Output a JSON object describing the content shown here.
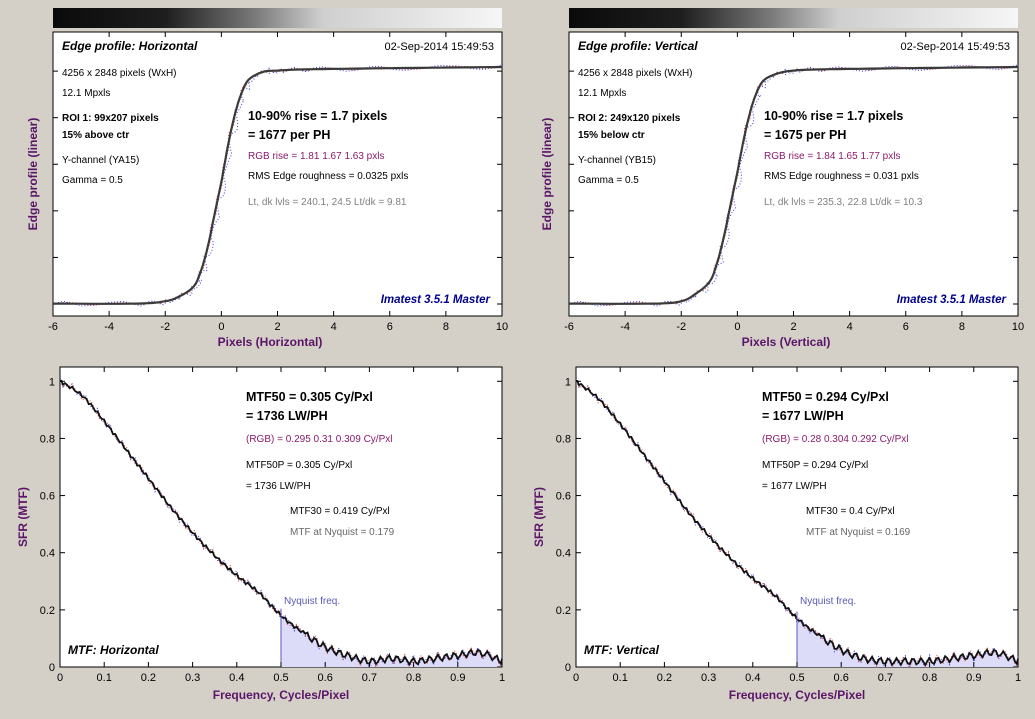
{
  "colors": {
    "background": "#d4d0c8",
    "plot_bg": "#ffffff",
    "main_line": "#3a3a3a",
    "red_channel": "#d23c3c",
    "green_channel": "#2f8f2f",
    "blue_channel": "#3b3bd6",
    "axis_label": "#5a1468",
    "rgb_text": "#8a1a6a",
    "gray_text": "#808080",
    "watermark": "#00008b",
    "nyquist_line": "#5a5ab4",
    "nyquist_fill": "#dcdcf8"
  },
  "edge_panels": [
    {
      "title": "Edge profile: Horizontal",
      "timestamp": "02-Sep-2014 15:49:53",
      "info": [
        "4256 x 2848 pixels (WxH)",
        "12.1 Mpxls"
      ],
      "roi": "ROI 1:  99x207 pixels",
      "roi_pos": "15% above ctr",
      "channel": "Y-channel  (YA15)",
      "gamma": "Gamma = 0.5",
      "rise": "10-90% rise = 1.7 pixels",
      "per_ph": "= 1677 per PH",
      "rgb_rise": "RGB rise = 1.81  1.67  1.63 pxls",
      "roughness": "RMS Edge roughness = 0.0325 pxls",
      "levels": "Lt, dk lvls = 240.1, 24.5   Lt/dk = 9.81",
      "watermark": "Imatest 3.5.1 Master",
      "xlabel": "Pixels (Horizontal)",
      "ylabel": "Edge profile (linear)"
    },
    {
      "title": "Edge profile: Vertical",
      "timestamp": "02-Sep-2014 15:49:53",
      "info": [
        "4256 x 2848 pixels (WxH)",
        "12.1 Mpxls"
      ],
      "roi": "ROI 2:  249x120 pixels",
      "roi_pos": "15% below ctr",
      "channel": "Y-channel  (YB15)",
      "gamma": "Gamma = 0.5",
      "rise": "10-90% rise = 1.7 pixels",
      "per_ph": "= 1675 per PH",
      "rgb_rise": "RGB rise = 1.84  1.65  1.77 pxls",
      "roughness": "RMS Edge roughness = 0.031 pxls",
      "levels": "Lt, dk lvls = 235.3, 22.8   Lt/dk = 10.3",
      "watermark": "Imatest 3.5.1 Master",
      "xlabel": "Pixels (Vertical)",
      "ylabel": "Edge profile (linear)"
    }
  ],
  "mtf_panels": [
    {
      "title": "MTF: Horizontal",
      "mtf50": "MTF50 = 0.305 Cy/Pxl",
      "mtf50_lw": "= 1736 LW/PH",
      "rgb": "(RGB) = 0.295  0.31  0.309 Cy/Pxl",
      "mtf50p": "MTF50P = 0.305 Cy/Pxl",
      "mtf50p_lw": "= 1736 LW/PH",
      "mtf30": "MTF30 = 0.419 Cy/Pxl",
      "nyq": "MTF at Nyquist = 0.179",
      "nyquist_label": "Nyquist freq.",
      "xlabel": "Frequency, Cycles/Pixel",
      "ylabel": "SFR (MTF)"
    },
    {
      "title": "MTF: Vertical",
      "mtf50": "MTF50 = 0.294 Cy/Pxl",
      "mtf50_lw": "= 1677 LW/PH",
      "rgb": "(RGB) = 0.28  0.304  0.292 Cy/Pxl",
      "mtf50p": "MTF50P = 0.294 Cy/Pxl",
      "mtf50p_lw": "= 1677 LW/PH",
      "mtf30": "MTF30 = 0.4 Cy/Pxl",
      "nyq": "MTF at Nyquist = 0.169",
      "nyquist_label": "Nyquist freq.",
      "xlabel": "Frequency, Cycles/Pixel",
      "ylabel": "SFR (MTF)"
    }
  ],
  "chart_data": [
    {
      "type": "line",
      "title": "Edge profile: Horizontal",
      "xlabel": "Pixels (Horizontal)",
      "ylabel": "Edge profile (linear)",
      "xlim": [
        -6,
        10
      ],
      "ylim": [
        0,
        1
      ],
      "xticks": [
        "-6",
        "-4",
        "-2",
        "0",
        "2",
        "4",
        "6",
        "8",
        "10"
      ],
      "x": [
        -6,
        -3,
        -2,
        -1.5,
        -1,
        -0.75,
        -0.5,
        -0.25,
        0,
        0.25,
        0.5,
        0.75,
        1,
        1.5,
        2,
        3,
        6,
        10
      ],
      "series": [
        {
          "values": [
            0.01,
            0.01,
            0.02,
            0.04,
            0.08,
            0.14,
            0.24,
            0.38,
            0.52,
            0.68,
            0.81,
            0.9,
            0.95,
            0.98,
            0.985,
            0.99,
            0.995,
            1.0
          ]
        }
      ]
    },
    {
      "type": "line",
      "title": "Edge profile: Vertical",
      "xlabel": "Pixels (Vertical)",
      "ylabel": "Edge profile (linear)",
      "xlim": [
        -6,
        10
      ],
      "ylim": [
        0,
        1
      ],
      "xticks": [
        "-6",
        "-4",
        "-2",
        "0",
        "2",
        "4",
        "6",
        "8",
        "10"
      ],
      "x": [
        -6,
        -3,
        -2,
        -1.5,
        -1,
        -0.75,
        -0.5,
        -0.25,
        0,
        0.25,
        0.5,
        0.75,
        1,
        1.5,
        2,
        3,
        6,
        10
      ],
      "series": [
        {
          "values": [
            0.01,
            0.01,
            0.02,
            0.05,
            0.1,
            0.17,
            0.28,
            0.42,
            0.56,
            0.71,
            0.83,
            0.91,
            0.95,
            0.975,
            0.985,
            0.99,
            0.995,
            1.0
          ]
        }
      ]
    },
    {
      "type": "line",
      "title": "MTF: Horizontal",
      "xlabel": "Frequency, Cycles/Pixel",
      "ylabel": "SFR (MTF)",
      "xlim": [
        0,
        1
      ],
      "ylim": [
        0,
        1.05
      ],
      "xticks": [
        "0",
        "0.1",
        "0.2",
        "0.3",
        "0.4",
        "0.5",
        "0.6",
        "0.7",
        "0.8",
        "0.9",
        "1"
      ],
      "yticks": [
        "0",
        "0.2",
        "0.4",
        "0.6",
        "0.8",
        "1"
      ],
      "nyquist": 0.5,
      "x": [
        0,
        0.05,
        0.1,
        0.15,
        0.2,
        0.25,
        0.3,
        0.35,
        0.4,
        0.45,
        0.5,
        0.55,
        0.6,
        0.65,
        0.7,
        0.75,
        0.8,
        0.85,
        0.9,
        0.95,
        1.0
      ],
      "series": [
        {
          "values": [
            1.0,
            0.95,
            0.86,
            0.76,
            0.66,
            0.56,
            0.47,
            0.39,
            0.32,
            0.26,
            0.18,
            0.12,
            0.07,
            0.04,
            0.02,
            0.03,
            0.02,
            0.03,
            0.04,
            0.05,
            0.02
          ]
        }
      ]
    },
    {
      "type": "line",
      "title": "MTF: Vertical",
      "xlabel": "Frequency, Cycles/Pixel",
      "ylabel": "SFR (MTF)",
      "xlim": [
        0,
        1
      ],
      "ylim": [
        0,
        1.05
      ],
      "xticks": [
        "0",
        "0.1",
        "0.2",
        "0.3",
        "0.4",
        "0.5",
        "0.6",
        "0.7",
        "0.8",
        "0.9",
        "1"
      ],
      "yticks": [
        "0",
        "0.2",
        "0.4",
        "0.6",
        "0.8",
        "1"
      ],
      "nyquist": 0.5,
      "x": [
        0,
        0.05,
        0.1,
        0.15,
        0.2,
        0.25,
        0.3,
        0.35,
        0.4,
        0.45,
        0.5,
        0.55,
        0.6,
        0.65,
        0.7,
        0.75,
        0.8,
        0.85,
        0.9,
        0.95,
        1.0
      ],
      "series": [
        {
          "values": [
            1.0,
            0.94,
            0.85,
            0.75,
            0.65,
            0.55,
            0.46,
            0.38,
            0.31,
            0.25,
            0.17,
            0.11,
            0.06,
            0.03,
            0.02,
            0.02,
            0.02,
            0.03,
            0.04,
            0.05,
            0.02
          ]
        }
      ]
    }
  ]
}
